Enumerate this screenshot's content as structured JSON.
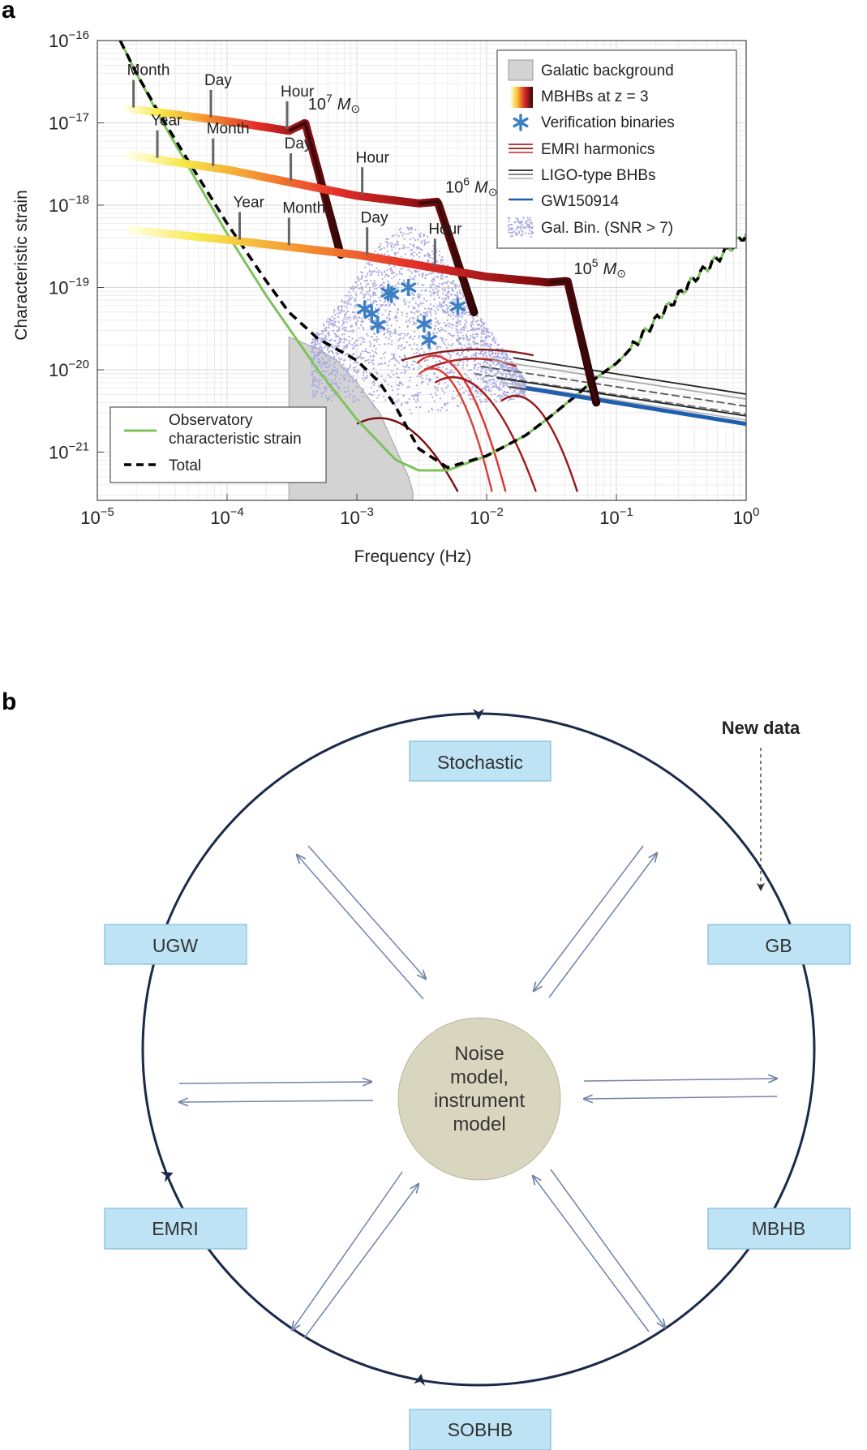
{
  "panel_a": {
    "label": "a",
    "xlabel": "Frequency (Hz)",
    "ylabel": "Characteristic strain",
    "x_ticks": [
      {
        "base": "10",
        "exp": "−5",
        "value": 1e-05
      },
      {
        "base": "10",
        "exp": "−4",
        "value": 0.0001
      },
      {
        "base": "10",
        "exp": "−3",
        "value": 0.001
      },
      {
        "base": "10",
        "exp": "−2",
        "value": 0.01
      },
      {
        "base": "10",
        "exp": "−1",
        "value": 0.1
      },
      {
        "base": "10",
        "exp": "0",
        "value": 1
      }
    ],
    "y_ticks": [
      {
        "base": "10",
        "exp": "−16",
        "value": 1e-16
      },
      {
        "base": "10",
        "exp": "−17",
        "value": 1e-17
      },
      {
        "base": "10",
        "exp": "−18",
        "value": 1e-18
      },
      {
        "base": "10",
        "exp": "−19",
        "value": 1e-19
      },
      {
        "base": "10",
        "exp": "−20",
        "value": 1e-20
      },
      {
        "base": "10",
        "exp": "−21",
        "value": 1e-21
      }
    ],
    "legend_main": [
      {
        "label": "Galatic background",
        "swatch": "gray-box"
      },
      {
        "label": "MBHBs at z = 3",
        "swatch": "gradient"
      },
      {
        "label": "Verification binaries",
        "swatch": "star"
      },
      {
        "label": "EMRI harmonics",
        "swatch": "red-lines"
      },
      {
        "label": "LIGO-type BHBs",
        "swatch": "gray-lines"
      },
      {
        "label": "GW150914",
        "swatch": "blue-line"
      },
      {
        "label": "Gal. Bin. (SNR > 7)",
        "swatch": "dots"
      }
    ],
    "legend_sub": [
      {
        "label": "Observatory",
        "label2": "characteristic strain",
        "swatch": "green"
      },
      {
        "label": "Total",
        "swatch": "dashed"
      }
    ],
    "mass_labels": [
      {
        "exp": "7",
        "unit": "M",
        "x": 0.00042,
        "y": 1.45e-17
      },
      {
        "exp": "6",
        "unit": "M",
        "x": 0.0048,
        "y": 1.42e-18
      },
      {
        "exp": "5",
        "unit": "M",
        "x": 0.047,
        "y": 1.45e-19
      }
    ],
    "time_markers": [
      {
        "label": "Month",
        "x": 1.9e-05,
        "track": 0
      },
      {
        "label": "Day",
        "x": 7.5e-05,
        "track": 0
      },
      {
        "label": "Hour",
        "x": 0.00029,
        "track": 0
      },
      {
        "label": "Year",
        "x": 2.9e-05,
        "track": 1
      },
      {
        "label": "Month",
        "x": 7.8e-05,
        "track": 1
      },
      {
        "label": "Day",
        "x": 0.00031,
        "track": 1
      },
      {
        "label": "Hour",
        "x": 0.0011,
        "track": 1
      },
      {
        "label": "Year",
        "x": 0.000125,
        "track": 2
      },
      {
        "label": "Month",
        "x": 0.0003,
        "track": 2
      },
      {
        "label": "Day",
        "x": 0.0012,
        "track": 2
      },
      {
        "label": "Hour",
        "x": 0.004,
        "track": 2
      }
    ],
    "colors": {
      "green": "#7dc35a",
      "blue_star": "#3b7fc4",
      "gw150914": "#1f5fae",
      "dots": "#a9a9e0",
      "background_fill": "#d3d3d3",
      "dark_red": "#3a0a0a"
    }
  },
  "chart_data": {
    "type": "line",
    "x_scale": "log",
    "y_scale": "log",
    "xlim": [
      1e-05,
      1
    ],
    "ylim": [
      3.3e-22,
      1e-16
    ],
    "grid": true,
    "legend_placement": "top-right",
    "series": [
      {
        "name": "Observatory characteristic strain",
        "color": "#7dc35a",
        "x": [
          1.5e-05,
          2e-05,
          3e-05,
          5e-05,
          0.0001,
          0.0002,
          0.0005,
          0.001,
          0.002,
          0.003,
          0.005,
          0.01,
          0.02,
          0.03,
          0.05,
          0.07,
          0.1,
          0.12,
          0.2,
          0.4,
          1
        ],
        "y": [
          1e-16,
          4e-17,
          1.2e-17,
          3e-18,
          4.5e-19,
          8e-20,
          1e-20,
          2.5e-21,
          8e-22,
          6e-22,
          6e-22,
          9e-22,
          1.6e-21,
          2.6e-21,
          5e-21,
          8e-21,
          1.2e-20,
          1.6e-20,
          4e-20,
          1.3e-19,
          4.5e-19
        ]
      },
      {
        "name": "Total",
        "color": "#000000",
        "x": [
          1.5e-05,
          2e-05,
          3e-05,
          5e-05,
          0.0001,
          0.0002,
          0.0003,
          0.0005,
          0.001,
          0.0015,
          0.002,
          0.003,
          0.005,
          0.01,
          0.02,
          0.03,
          0.05,
          0.07,
          0.1,
          0.12,
          0.2,
          0.4,
          1
        ],
        "y": [
          1e-16,
          4e-17,
          1.3e-17,
          3.5e-18,
          6e-19,
          1.2e-19,
          5e-20,
          2.4e-20,
          1.3e-20,
          7e-21,
          3.5e-21,
          1.1e-21,
          6.5e-22,
          9e-22,
          1.6e-21,
          2.6e-21,
          5e-21,
          8e-21,
          1.2e-20,
          1.6e-20,
          4e-20,
          1.3e-19,
          4.5e-19
        ]
      },
      {
        "name": "Galatic background",
        "color": "#d3d3d3",
        "x": [
          0.0003,
          0.0005,
          0.0007,
          0.001,
          0.0015,
          0.002,
          0.0025,
          0.0027
        ],
        "y": [
          2.5e-20,
          1.8e-20,
          1.3e-20,
          7e-21,
          3e-21,
          1.1e-21,
          5e-22,
          3.3e-22
        ]
      },
      {
        "name": "MBHB 10^7",
        "x": [
          1.7e-05,
          0.0001,
          0.0003,
          0.0004,
          0.00075
        ],
        "y": [
          1.5e-17,
          1.05e-17,
          8e-18,
          1e-17,
          2.5e-19
        ]
      },
      {
        "name": "MBHB 10^6",
        "x": [
          1.8e-05,
          0.0001,
          0.001,
          0.003,
          0.0042,
          0.008
        ],
        "y": [
          4e-18,
          2.7e-18,
          1.3e-18,
          1.05e-18,
          1.1e-18,
          5e-20
        ]
      },
      {
        "name": "MBHB 10^5",
        "x": [
          1.8e-05,
          0.0001,
          0.001,
          0.01,
          0.03,
          0.042,
          0.07
        ],
        "y": [
          5e-19,
          3.8e-19,
          2.5e-19,
          1.35e-19,
          1.15e-19,
          1.2e-19,
          4e-21
        ]
      },
      {
        "name": "GW150914",
        "color": "#1f5fae",
        "x": [
          0.02,
          1
        ],
        "y": [
          6e-21,
          2.2e-21
        ]
      }
    ],
    "verification_binaries": [
      {
        "x": 0.00115,
        "y": 5.5e-20
      },
      {
        "x": 0.0013,
        "y": 4.8e-20
      },
      {
        "x": 0.00145,
        "y": 3.5e-20
      },
      {
        "x": 0.00175,
        "y": 8.7e-20
      },
      {
        "x": 0.00185,
        "y": 8.2e-20
      },
      {
        "x": 0.0025,
        "y": 1e-19
      },
      {
        "x": 0.0033,
        "y": 3.6e-20
      },
      {
        "x": 0.0036,
        "y": 2.3e-20
      },
      {
        "x": 0.006,
        "y": 5.9e-20
      }
    ]
  },
  "panel_b": {
    "label": "b",
    "new_data": "New data",
    "center": [
      "Noise",
      "model,",
      "instrument",
      "model"
    ],
    "boxes": {
      "top": "Stochastic",
      "upper_right": "GB",
      "lower_right": "MBHB",
      "bottom": "SOBHB",
      "lower_left": "EMRI",
      "upper_left": "UGW"
    },
    "colors": {
      "box_fill": "#bde3f5",
      "box_border": "#7fbfe0",
      "circle": "#1b2a4a",
      "center_fill": "#d9d6c0",
      "arrow": "#6f84a8"
    }
  }
}
